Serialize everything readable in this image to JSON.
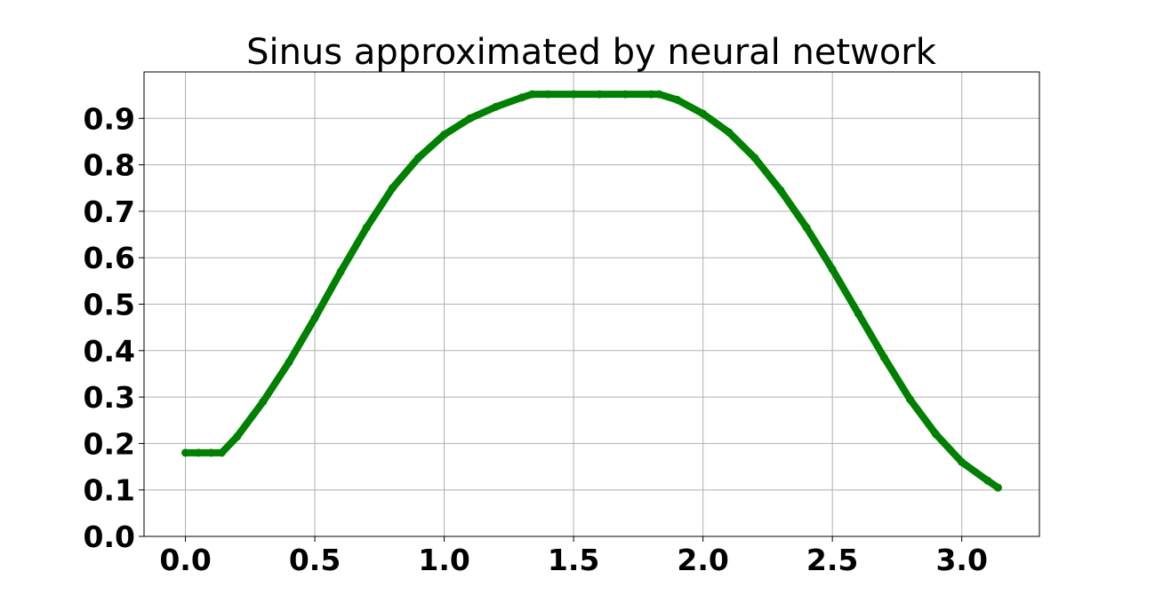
{
  "chart_data": {
    "type": "scatter",
    "title": "Sinus approximated by neural network",
    "xlabel": "",
    "ylabel": "",
    "xlim": [
      -0.16,
      3.3
    ],
    "ylim": [
      0.0,
      1.0
    ],
    "x_ticks": [
      0.0,
      0.5,
      1.0,
      1.5,
      2.0,
      2.5,
      3.0
    ],
    "x_tick_labels": [
      "0.0",
      "0.5",
      "1.0",
      "1.5",
      "2.0",
      "2.5",
      "3.0"
    ],
    "y_ticks": [
      0.0,
      0.1,
      0.2,
      0.3,
      0.4,
      0.5,
      0.6,
      0.7,
      0.8,
      0.9
    ],
    "y_tick_labels": [
      "0.0",
      "0.1",
      "0.2",
      "0.3",
      "0.4",
      "0.5",
      "0.6",
      "0.7",
      "0.8",
      "0.9"
    ],
    "grid": true,
    "series": [
      {
        "color": "#008000",
        "x": [
          0.0,
          0.05,
          0.1,
          0.14,
          0.2,
          0.3,
          0.4,
          0.5,
          0.6,
          0.7,
          0.8,
          0.9,
          1.0,
          1.1,
          1.2,
          1.3,
          1.34,
          1.4,
          1.5,
          1.6,
          1.7,
          1.8,
          1.83,
          1.9,
          2.0,
          2.1,
          2.2,
          2.3,
          2.4,
          2.5,
          2.6,
          2.7,
          2.8,
          2.9,
          3.0,
          3.1,
          3.14
        ],
        "y": [
          0.18,
          0.18,
          0.18,
          0.18,
          0.215,
          0.29,
          0.375,
          0.47,
          0.57,
          0.665,
          0.75,
          0.815,
          0.865,
          0.9,
          0.925,
          0.945,
          0.952,
          0.952,
          0.952,
          0.952,
          0.952,
          0.952,
          0.952,
          0.94,
          0.91,
          0.87,
          0.815,
          0.745,
          0.665,
          0.575,
          0.48,
          0.385,
          0.295,
          0.22,
          0.16,
          0.12,
          0.105
        ]
      }
    ]
  }
}
